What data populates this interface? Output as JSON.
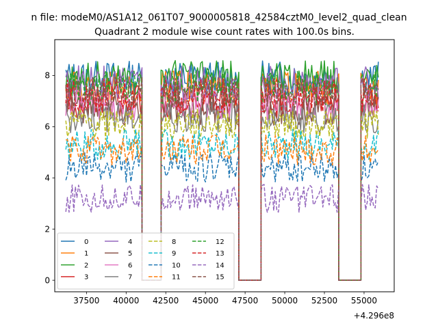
{
  "suptitle": "n file: modeM0/AS1A12_061T07_9000005818_42584cztM0_level2_quad_clean",
  "chart_data": {
    "type": "line",
    "title": "Quadrant 2 module wise count rates with 100.0s bins.",
    "xlabel": "",
    "ylabel": "",
    "x_offset_label": "+4.296e8",
    "xlim": [
      35500,
      56900
    ],
    "ylim": [
      -0.45,
      9.4
    ],
    "xticks": [
      37500,
      40000,
      42500,
      45000,
      47500,
      50000,
      52500,
      55000
    ],
    "yticks": [
      0,
      2,
      4,
      6,
      8
    ],
    "grid": false,
    "legend": {
      "placement": "lower-left",
      "ncol": 4
    },
    "segments": [
      {
        "start": 36200,
        "end": 41000,
        "active": true
      },
      {
        "start": 41000,
        "end": 42200,
        "active": false
      },
      {
        "start": 42200,
        "end": 47100,
        "active": true
      },
      {
        "start": 47100,
        "end": 48500,
        "active": false
      },
      {
        "start": 48500,
        "end": 53400,
        "active": true
      },
      {
        "start": 53400,
        "end": 54800,
        "active": false
      },
      {
        "start": 54800,
        "end": 55900,
        "active": true
      }
    ],
    "bin_seconds": 100.0,
    "series": [
      {
        "name": "0",
        "level": 7.9,
        "color": "#1f77b4",
        "dash": "solid"
      },
      {
        "name": "1",
        "level": 7.5,
        "color": "#ff7f0e",
        "dash": "solid"
      },
      {
        "name": "2",
        "level": 7.9,
        "color": "#2ca02c",
        "dash": "solid"
      },
      {
        "name": "3",
        "level": 7.0,
        "color": "#d62728",
        "dash": "solid"
      },
      {
        "name": "4",
        "level": 7.7,
        "color": "#9467bd",
        "dash": "solid"
      },
      {
        "name": "5",
        "level": 6.7,
        "color": "#8c564b",
        "dash": "solid"
      },
      {
        "name": "6",
        "level": 6.9,
        "color": "#e377c2",
        "dash": "solid"
      },
      {
        "name": "7",
        "level": 6.4,
        "color": "#7f7f7f",
        "dash": "solid"
      },
      {
        "name": "8",
        "level": 6.1,
        "color": "#bcbd22",
        "dash": "dashed"
      },
      {
        "name": "9",
        "level": 5.3,
        "color": "#17becf",
        "dash": "dashed"
      },
      {
        "name": "10",
        "level": 4.4,
        "color": "#1f77b4",
        "dash": "dashed"
      },
      {
        "name": "11",
        "level": 5.1,
        "color": "#ff7f0e",
        "dash": "dashed"
      },
      {
        "name": "12",
        "level": 7.5,
        "color": "#2ca02c",
        "dash": "dashed"
      },
      {
        "name": "13",
        "level": 7.2,
        "color": "#d62728",
        "dash": "dashed"
      },
      {
        "name": "14",
        "level": 3.2,
        "color": "#9467bd",
        "dash": "dashed"
      },
      {
        "name": "15",
        "level": 7.3,
        "color": "#8c564b",
        "dash": "dashed"
      }
    ]
  }
}
